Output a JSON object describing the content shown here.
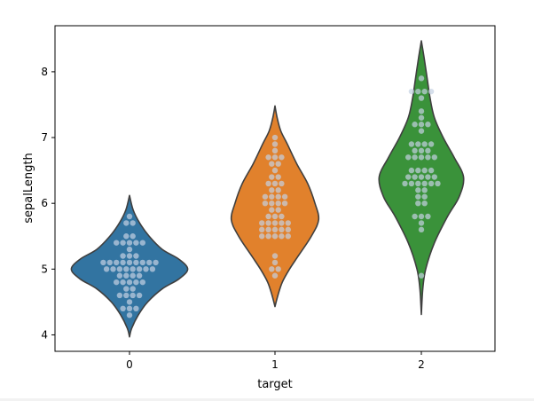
{
  "chart_data": {
    "type": "violin",
    "xlabel": "target",
    "ylabel": "sepalLength",
    "categories": [
      "0",
      "1",
      "2"
    ],
    "ylim": [
      3.75,
      8.7
    ],
    "yticks": [
      4,
      5,
      6,
      7,
      8
    ],
    "grid": false,
    "legend": "none",
    "colors": {
      "0": "#3274a1",
      "1": "#e1812c",
      "2": "#3a923a",
      "outline": "#3f3f3f",
      "points": "#c4d2e3"
    },
    "violins": [
      {
        "category": "0",
        "range": [
          3.97,
          6.12
        ],
        "profile": [
          [
            3.97,
            0.0
          ],
          [
            4.1,
            0.03
          ],
          [
            4.3,
            0.12
          ],
          [
            4.5,
            0.25
          ],
          [
            4.7,
            0.45
          ],
          [
            4.85,
            0.68
          ],
          [
            5.0,
            0.8
          ],
          [
            5.15,
            0.68
          ],
          [
            5.3,
            0.45
          ],
          [
            5.5,
            0.27
          ],
          [
            5.7,
            0.14
          ],
          [
            5.9,
            0.05
          ],
          [
            6.12,
            0.0
          ]
        ],
        "points": [
          [
            4.3,
            1
          ],
          [
            4.4,
            3
          ],
          [
            4.5,
            1
          ],
          [
            4.6,
            4
          ],
          [
            4.7,
            2
          ],
          [
            4.8,
            5
          ],
          [
            4.9,
            4
          ],
          [
            5.0,
            8
          ],
          [
            5.1,
            9
          ],
          [
            5.2,
            3
          ],
          [
            5.3,
            1
          ],
          [
            5.4,
            5
          ],
          [
            5.5,
            2
          ],
          [
            5.7,
            2
          ],
          [
            5.8,
            1
          ]
        ]
      },
      {
        "category": "1",
        "range": [
          4.43,
          7.48
        ],
        "profile": [
          [
            4.43,
            0.0
          ],
          [
            4.6,
            0.04
          ],
          [
            4.8,
            0.1
          ],
          [
            5.0,
            0.2
          ],
          [
            5.2,
            0.32
          ],
          [
            5.5,
            0.5
          ],
          [
            5.75,
            0.6
          ],
          [
            6.0,
            0.55
          ],
          [
            6.3,
            0.45
          ],
          [
            6.6,
            0.3
          ],
          [
            6.9,
            0.17
          ],
          [
            7.1,
            0.08
          ],
          [
            7.3,
            0.03
          ],
          [
            7.48,
            0.0
          ]
        ],
        "points": [
          [
            4.9,
            1
          ],
          [
            5.0,
            2
          ],
          [
            5.1,
            1
          ],
          [
            5.2,
            1
          ],
          [
            5.5,
            5
          ],
          [
            5.6,
            5
          ],
          [
            5.7,
            5
          ],
          [
            5.8,
            3
          ],
          [
            5.9,
            2
          ],
          [
            6.0,
            4
          ],
          [
            6.1,
            4
          ],
          [
            6.2,
            2
          ],
          [
            6.3,
            3
          ],
          [
            6.4,
            2
          ],
          [
            6.5,
            1
          ],
          [
            6.6,
            2
          ],
          [
            6.7,
            3
          ],
          [
            6.8,
            1
          ],
          [
            6.9,
            1
          ],
          [
            7.0,
            1
          ]
        ]
      },
      {
        "category": "2",
        "range": [
          4.31,
          8.47
        ],
        "profile": [
          [
            4.31,
            0.0
          ],
          [
            4.7,
            0.02
          ],
          [
            5.0,
            0.06
          ],
          [
            5.4,
            0.18
          ],
          [
            5.8,
            0.36
          ],
          [
            6.1,
            0.52
          ],
          [
            6.4,
            0.58
          ],
          [
            6.7,
            0.45
          ],
          [
            7.0,
            0.3
          ],
          [
            7.3,
            0.18
          ],
          [
            7.6,
            0.12
          ],
          [
            7.9,
            0.08
          ],
          [
            8.2,
            0.04
          ],
          [
            8.47,
            0.0
          ]
        ],
        "points": [
          [
            4.9,
            1
          ],
          [
            5.6,
            1
          ],
          [
            5.7,
            1
          ],
          [
            5.8,
            3
          ],
          [
            6.0,
            2
          ],
          [
            6.1,
            2
          ],
          [
            6.2,
            2
          ],
          [
            6.3,
            6
          ],
          [
            6.4,
            5
          ],
          [
            6.5,
            4
          ],
          [
            6.7,
            5
          ],
          [
            6.8,
            3
          ],
          [
            6.9,
            4
          ],
          [
            7.1,
            1
          ],
          [
            7.2,
            3
          ],
          [
            7.3,
            1
          ],
          [
            7.4,
            1
          ],
          [
            7.6,
            1
          ],
          [
            7.7,
            4
          ],
          [
            7.9,
            1
          ]
        ]
      }
    ]
  }
}
